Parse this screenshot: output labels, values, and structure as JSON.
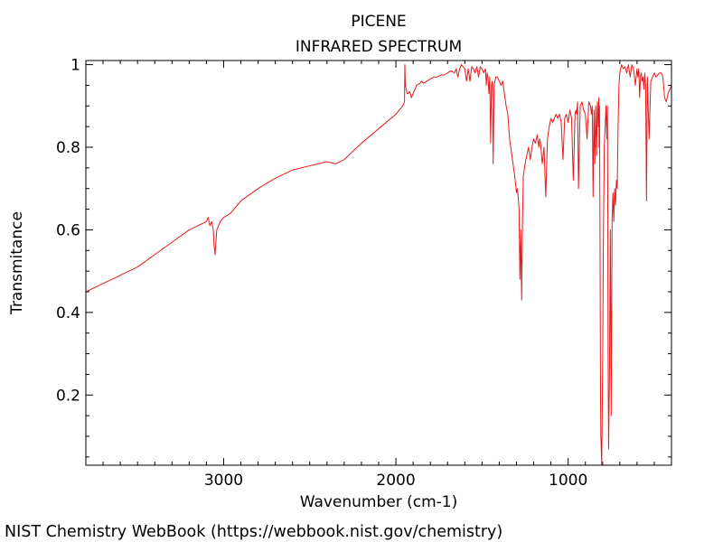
{
  "chart_data": {
    "type": "line",
    "title": "PICENE",
    "subtitle": "INFRARED SPECTRUM",
    "xlabel": "Wavenumber (cm-1)",
    "ylabel": "Transmitance",
    "xlim": [
      3800,
      400
    ],
    "ylim": [
      0.03,
      1.01
    ],
    "x_ticks": [
      {
        "value": 3000,
        "label": "3000"
      },
      {
        "value": 2000,
        "label": "2000"
      },
      {
        "value": 1000,
        "label": "1000"
      }
    ],
    "y_ticks": [
      {
        "value": 1.0,
        "label": "1"
      },
      {
        "value": 0.8,
        "label": "0.8"
      },
      {
        "value": 0.6,
        "label": "0.6"
      },
      {
        "value": 0.4,
        "label": "0.4"
      },
      {
        "value": 0.2,
        "label": "0.2"
      }
    ],
    "grid": false,
    "line_color": "#e8191c",
    "series": [
      {
        "x": [
          3800,
          3700,
          3600,
          3500,
          3400,
          3300,
          3200,
          3150,
          3100,
          3090,
          3080,
          3070,
          3060,
          3055,
          3050,
          3045,
          3040,
          3030,
          3020,
          3000,
          2980,
          2960,
          2940,
          2900,
          2800,
          2700,
          2600,
          2500,
          2450,
          2400,
          2350,
          2300,
          2250,
          2200,
          2100,
          2000,
          1980,
          1960,
          1950,
          1948,
          1945,
          1940,
          1935,
          1930,
          1920,
          1910,
          1900,
          1890,
          1880,
          1860,
          1850,
          1840,
          1820,
          1800,
          1780,
          1760,
          1740,
          1720,
          1700,
          1680,
          1660,
          1650,
          1640,
          1630,
          1620,
          1610,
          1600,
          1590,
          1580,
          1570,
          1560,
          1550,
          1540,
          1530,
          1520,
          1510,
          1500,
          1490,
          1480,
          1475,
          1470,
          1465,
          1460,
          1455,
          1450,
          1445,
          1440,
          1435,
          1430,
          1425,
          1420,
          1410,
          1400,
          1390,
          1380,
          1370,
          1360,
          1350,
          1340,
          1330,
          1320,
          1310,
          1300,
          1295,
          1290,
          1285,
          1280,
          1275,
          1270,
          1265,
          1260,
          1250,
          1240,
          1230,
          1220,
          1210,
          1200,
          1190,
          1180,
          1170,
          1165,
          1160,
          1150,
          1140,
          1130,
          1120,
          1110,
          1100,
          1090,
          1080,
          1070,
          1060,
          1050,
          1040,
          1030,
          1020,
          1010,
          1000,
          990,
          980,
          970,
          960,
          955,
          950,
          945,
          940,
          930,
          920,
          910,
          900,
          890,
          880,
          870,
          865,
          860,
          855,
          850,
          845,
          840,
          835,
          830,
          825,
          822,
          820,
          818,
          815,
          812,
          810,
          805,
          800,
          795,
          790,
          785,
          780,
          775,
          772,
          770,
          768,
          765,
          760,
          755,
          750,
          745,
          740,
          735,
          730,
          725,
          720,
          715,
          710,
          705,
          700,
          690,
          680,
          670,
          660,
          650,
          640,
          630,
          620,
          610,
          600,
          595,
          590,
          585,
          580,
          575,
          570,
          565,
          560,
          555,
          550,
          545,
          540,
          530,
          520,
          510,
          500,
          490,
          480,
          470,
          460,
          450,
          440,
          430,
          420,
          410,
          400
        ],
        "y": [
          0.45,
          0.47,
          0.49,
          0.51,
          0.54,
          0.57,
          0.6,
          0.61,
          0.62,
          0.63,
          0.61,
          0.62,
          0.6,
          0.56,
          0.54,
          0.57,
          0.6,
          0.61,
          0.62,
          0.63,
          0.635,
          0.64,
          0.65,
          0.67,
          0.7,
          0.725,
          0.745,
          0.755,
          0.76,
          0.765,
          0.76,
          0.77,
          0.79,
          0.81,
          0.845,
          0.88,
          0.89,
          0.9,
          0.91,
          1.0,
          0.95,
          0.94,
          0.93,
          0.93,
          0.935,
          0.92,
          0.93,
          0.94,
          0.95,
          0.955,
          0.96,
          0.955,
          0.96,
          0.965,
          0.97,
          0.97,
          0.975,
          0.975,
          0.98,
          0.985,
          0.98,
          0.99,
          0.97,
          0.99,
          1.0,
          0.995,
          0.99,
          0.96,
          0.99,
          0.96,
          0.995,
          0.99,
          0.98,
          0.995,
          0.97,
          0.995,
          0.99,
          0.98,
          0.99,
          0.95,
          0.98,
          0.97,
          0.93,
          0.97,
          0.81,
          0.95,
          0.96,
          0.76,
          0.95,
          0.96,
          0.97,
          0.97,
          0.96,
          0.95,
          0.96,
          0.93,
          0.9,
          0.88,
          0.82,
          0.79,
          0.76,
          0.73,
          0.69,
          0.7,
          0.68,
          0.65,
          0.48,
          0.6,
          0.43,
          0.62,
          0.73,
          0.76,
          0.78,
          0.8,
          0.77,
          0.8,
          0.82,
          0.81,
          0.83,
          0.8,
          0.82,
          0.81,
          0.76,
          0.8,
          0.68,
          0.82,
          0.85,
          0.87,
          0.86,
          0.87,
          0.88,
          0.87,
          0.88,
          0.86,
          0.77,
          0.87,
          0.88,
          0.86,
          0.89,
          0.87,
          0.72,
          0.88,
          0.89,
          0.88,
          0.91,
          0.7,
          0.9,
          0.91,
          0.89,
          0.88,
          0.82,
          0.91,
          0.9,
          0.88,
          0.9,
          0.68,
          0.89,
          0.76,
          0.9,
          0.78,
          0.91,
          0.85,
          0.92,
          0.8,
          0.9,
          0.6,
          0.2,
          0.1,
          0.03,
          0.25,
          0.6,
          0.8,
          0.85,
          0.9,
          0.82,
          0.9,
          0.7,
          0.3,
          0.07,
          0.25,
          0.6,
          0.15,
          0.62,
          0.69,
          0.62,
          0.7,
          0.66,
          0.72,
          0.7,
          0.85,
          0.95,
          0.98,
          1.0,
          0.99,
          0.995,
          0.98,
          1.0,
          0.97,
          1.0,
          0.99,
          0.95,
          0.99,
          0.97,
          0.99,
          0.92,
          0.97,
          0.98,
          0.96,
          0.97,
          0.94,
          0.98,
          0.95,
          0.67,
          0.97,
          0.82,
          0.96,
          0.97,
          0.98,
          0.97,
          0.975,
          0.98,
          0.98,
          0.97,
          0.92,
          0.91,
          0.93,
          0.94,
          0.95
        ]
      }
    ]
  },
  "footer": {
    "credit": "NIST Chemistry WebBook (https://webbook.nist.gov/chemistry)"
  }
}
